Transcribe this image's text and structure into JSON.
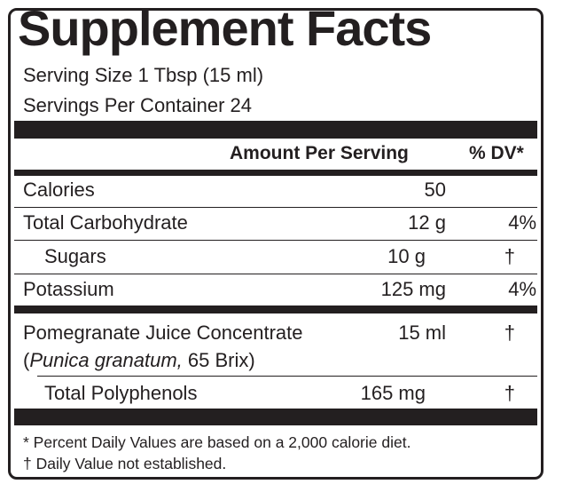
{
  "title": "Supplement Facts",
  "serving_size": "Serving Size 1 Tbsp (15 ml)",
  "servings_per_container": "Servings Per Container 24",
  "header": {
    "amount": "Amount Per Serving",
    "dv": "% DV*"
  },
  "rows": [
    {
      "name": "Calories",
      "amount": "50",
      "dv": ""
    },
    {
      "name": "Total Carbohydrate",
      "amount": "12 g",
      "dv": "4%"
    },
    {
      "name": "Sugars",
      "amount": "10 g",
      "dv": "†"
    },
    {
      "name": "Potassium",
      "amount": "125 mg",
      "dv": "4%"
    }
  ],
  "pomegranate": {
    "name": "Pomegranate Juice Concentrate",
    "latin": "Punica granatum,",
    "brix": " 65 Brix)",
    "open_paren": "(",
    "amount": "15 ml",
    "dv": "†"
  },
  "polyphenols": {
    "name": "Total Polyphenols",
    "amount": "165 mg",
    "dv": "†"
  },
  "footnotes": [
    "* Percent Daily Values are based on a 2,000 calorie diet.",
    "† Daily Value not established."
  ]
}
